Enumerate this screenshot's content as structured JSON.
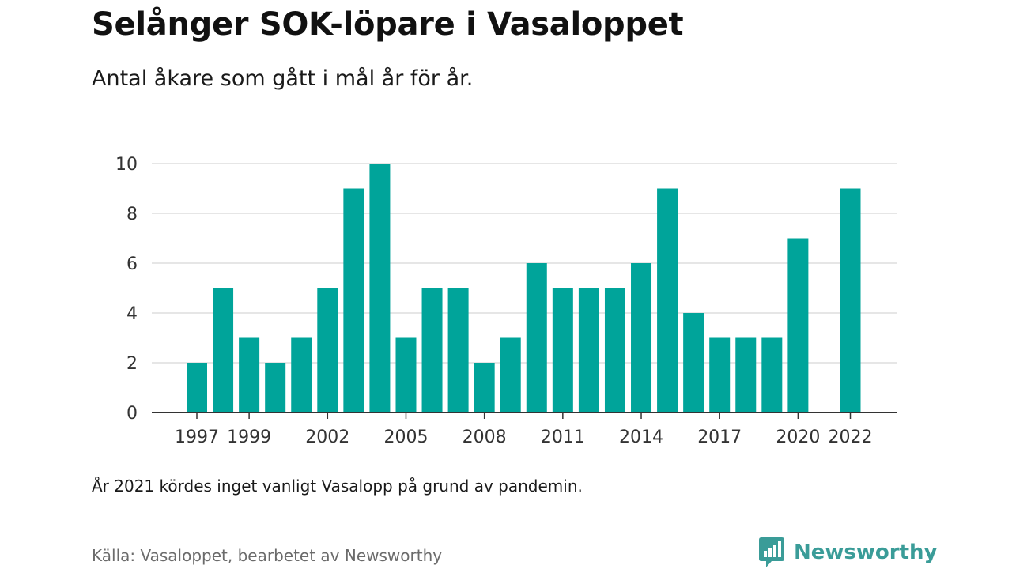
{
  "title": "Selånger SOK-löpare i Vasaloppet",
  "subtitle": "Antal åkare som gått i mål år för år.",
  "note": "År 2021 kördes inget vanligt Vasalopp på grund av pandemin.",
  "source": "Källa: Vasaloppet, bearbetet av Newsworthy",
  "logo": {
    "text": "Newsworthy",
    "icon": "newsworthy-logo-icon"
  },
  "colors": {
    "bar": "#00a49a",
    "brand": "#3a9c98",
    "grid": "#dddddd",
    "axis": "#333333"
  },
  "chart_data": {
    "type": "bar",
    "x": [
      1997,
      1998,
      1999,
      2000,
      2001,
      2002,
      2003,
      2004,
      2005,
      2006,
      2007,
      2008,
      2009,
      2010,
      2011,
      2012,
      2013,
      2014,
      2015,
      2016,
      2017,
      2018,
      2019,
      2020,
      2021,
      2022
    ],
    "values": [
      2,
      5,
      3,
      2,
      3,
      5,
      9,
      10,
      3,
      5,
      5,
      2,
      3,
      6,
      5,
      5,
      5,
      6,
      9,
      4,
      3,
      3,
      3,
      7,
      null,
      9
    ],
    "xticks": [
      "1997",
      "1999",
      "2002",
      "2005",
      "2008",
      "2011",
      "2014",
      "2017",
      "2020",
      "2022"
    ],
    "yticks": [
      "0",
      "2",
      "4",
      "6",
      "8",
      "10"
    ],
    "ylim": [
      0,
      10
    ],
    "grid": true,
    "xlabel": "",
    "ylabel": ""
  }
}
